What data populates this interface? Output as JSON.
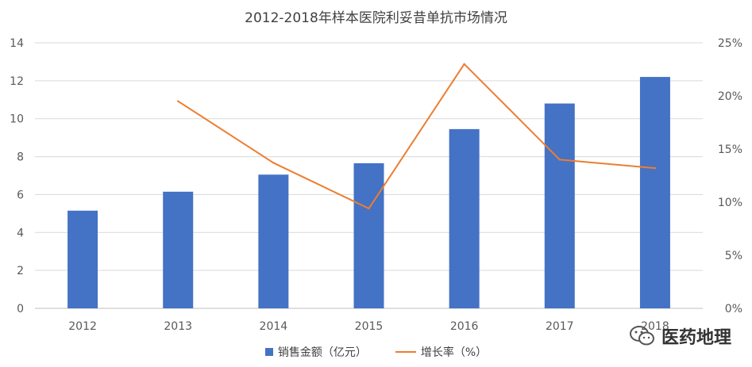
{
  "colors": {
    "bar": "#4472C4",
    "line": "#ED7D31",
    "grid": "#D9D9D9",
    "axis": "#BFBFBF"
  },
  "watermark": {
    "text": "医药地理",
    "icon": "wechat-icon"
  },
  "chart_data": {
    "type": "bar",
    "title": "2012-2018年样本医院利妥昔单抗市场情况",
    "categories": [
      "2012",
      "2013",
      "2014",
      "2015",
      "2016",
      "2017",
      "2018"
    ],
    "series": [
      {
        "name": "销售金额（亿元）",
        "type": "bar",
        "axis": "left",
        "values": [
          5.15,
          6.15,
          7.05,
          7.65,
          9.45,
          10.8,
          12.2
        ]
      },
      {
        "name": "增长率（%）",
        "type": "line",
        "axis": "right",
        "values": [
          null,
          19.5,
          13.7,
          9.4,
          23.0,
          14.0,
          13.2
        ]
      }
    ],
    "y_left": {
      "min": 0,
      "max": 14,
      "step": 2,
      "ticks": [
        "0",
        "2",
        "4",
        "6",
        "8",
        "10",
        "12",
        "14"
      ]
    },
    "y_right": {
      "min": 0,
      "max": 25,
      "step": 5,
      "ticks": [
        "0%",
        "5%",
        "10%",
        "15%",
        "20%",
        "25%"
      ]
    },
    "grid": true,
    "legend_position": "bottom"
  }
}
